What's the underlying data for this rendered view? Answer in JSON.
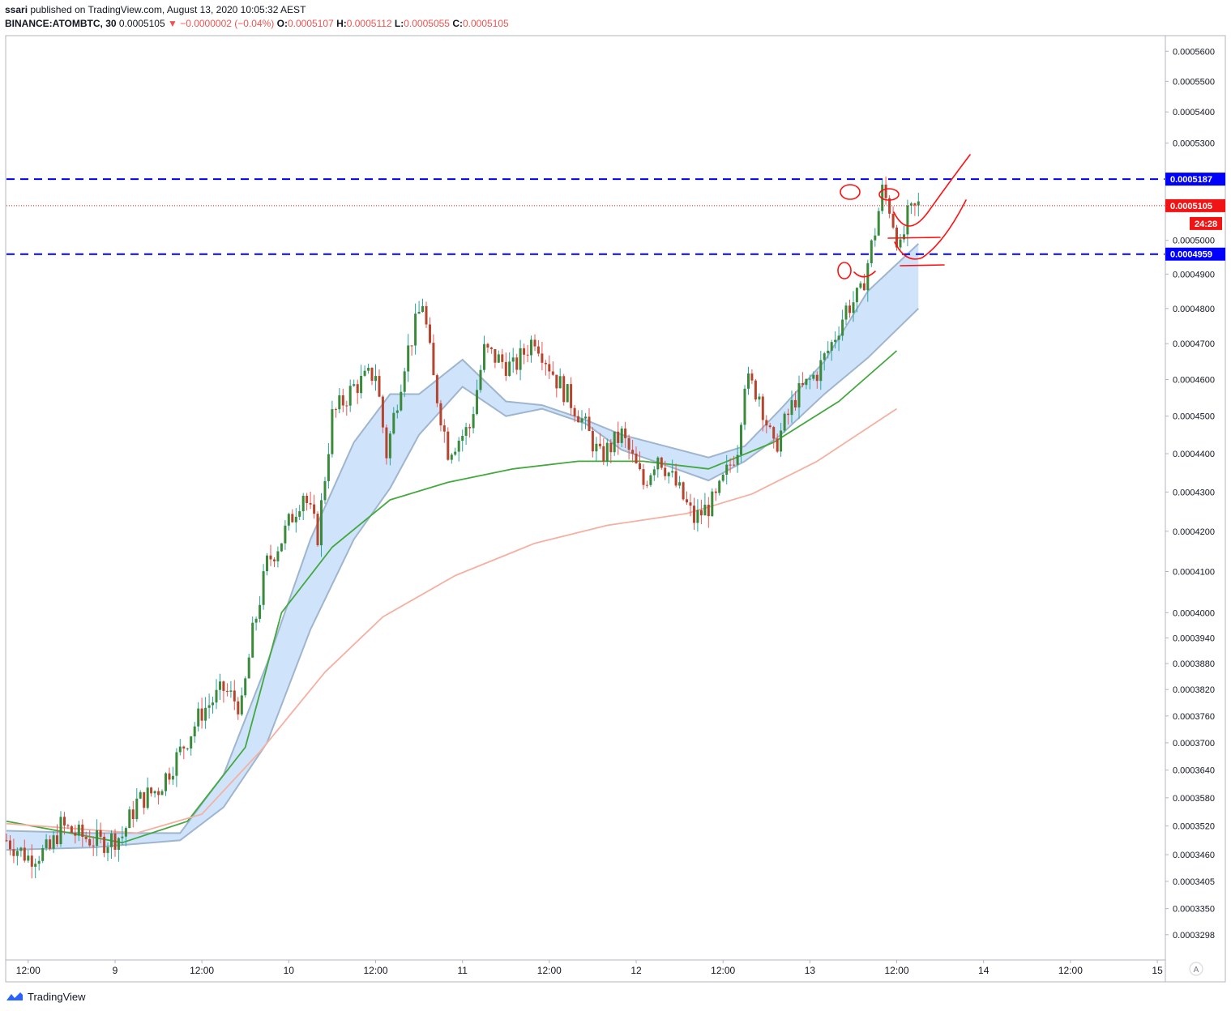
{
  "header": {
    "user": "ssari",
    "published_text": "published on TradingView.com, August 13, 2020 10:05:32 AEST",
    "symbol": "BINANCE:ATOMBTC, 30",
    "last": "0.0005105",
    "change": "▼ −0.0000002 (−0.04%)",
    "o_label": "O:",
    "o_value": "0.0005107",
    "h_label": "H:",
    "h_value": "0.0005112",
    "l_label": "L:",
    "l_value": "0.0005055",
    "c_label": "C:",
    "c_value": "0.0005105"
  },
  "footer": {
    "brand": "TradingView",
    "logo_icon": "tradingview-logo-icon"
  },
  "price_scale": {
    "ticks": [
      "0.0005600",
      "0.0005500",
      "0.0005400",
      "0.0005300",
      "0.0005000",
      "0.0004900",
      "0.0004800",
      "0.0004700",
      "0.0004600",
      "0.0004500",
      "0.0004400",
      "0.0004300",
      "0.0004200",
      "0.0004100",
      "0.0004000",
      "0.0003940",
      "0.0003880",
      "0.0003820",
      "0.0003760",
      "0.0003700",
      "0.0003640",
      "0.0003580",
      "0.0003520",
      "0.0003460",
      "0.0003405",
      "0.0003350",
      "0.0003298"
    ],
    "badges": [
      {
        "label": "0.0005187",
        "color": "#0000ff",
        "kind": "resistance"
      },
      {
        "label": "0.0005105",
        "color": "#f01414",
        "kind": "last-price"
      },
      {
        "label": "24:28",
        "color": "#f01414",
        "kind": "countdown"
      },
      {
        "label": "0.0004959",
        "color": "#0000ff",
        "kind": "support"
      }
    ],
    "log_scale": true,
    "auto_label": "A"
  },
  "time_scale": {
    "labels": [
      "12:00",
      "9",
      "12:00",
      "10",
      "12:00",
      "11",
      "12:00",
      "12",
      "12:00",
      "13",
      "12:00",
      "14",
      "12:00",
      "15"
    ],
    "start": "2020-08-08 09:00",
    "end": "2020-08-15 01:00"
  },
  "chart_data": {
    "type": "candlestick",
    "symbol": "BINANCE:ATOMBTC",
    "interval": "30",
    "xlim": [
      "2020-08-08 09:00",
      "2020-08-15 01:00"
    ],
    "ylim": [
      0.000325,
      0.000565
    ],
    "y_scale": "log",
    "grid": false,
    "levels": [
      {
        "value": 0.0005187,
        "style": "dashed",
        "color": "#0000ff"
      },
      {
        "value": 0.0004959,
        "style": "dashed",
        "color": "#0000ff"
      },
      {
        "value": 0.0005105,
        "style": "dotted",
        "color": "#f01414"
      }
    ],
    "close_path": [
      [
        "2020-08-08 09:00",
        0.000349
      ],
      [
        "2020-08-08 12:00",
        0.0003455
      ],
      [
        "2020-08-08 15:00",
        0.000347
      ],
      [
        "2020-08-08 16:30",
        0.000352
      ],
      [
        "2020-08-08 19:00",
        0.00035
      ],
      [
        "2020-08-08 22:00",
        0.0003485
      ],
      [
        "2020-08-09 01:00",
        0.00035
      ],
      [
        "2020-08-09 03:00",
        0.000357
      ],
      [
        "2020-08-09 06:00",
        0.00036
      ],
      [
        "2020-08-09 09:00",
        0.000368
      ],
      [
        "2020-08-09 12:00",
        0.000377
      ],
      [
        "2020-08-09 15:00",
        0.000382
      ],
      [
        "2020-08-09 17:30",
        0.000378
      ],
      [
        "2020-08-09 19:00",
        0.000395
      ],
      [
        "2020-08-09 21:00",
        0.000412
      ],
      [
        "2020-08-09 23:00",
        0.000418
      ],
      [
        "2020-08-10 02:00",
        0.00043
      ],
      [
        "2020-08-10 04:00",
        0.000419
      ],
      [
        "2020-08-10 06:00",
        0.00045
      ],
      [
        "2020-08-10 09:00",
        0.000458
      ],
      [
        "2020-08-10 12:00",
        0.000462
      ],
      [
        "2020-08-10 13:30",
        0.00044
      ],
      [
        "2020-08-10 16:00",
        0.000465
      ],
      [
        "2020-08-10 18:30",
        0.000482
      ],
      [
        "2020-08-10 20:00",
        0.00046
      ],
      [
        "2020-08-10 22:00",
        0.000441
      ],
      [
        "2020-08-11 01:00",
        0.000447
      ],
      [
        "2020-08-11 03:00",
        0.000468
      ],
      [
        "2020-08-11 07:00",
        0.000463
      ],
      [
        "2020-08-11 10:00",
        0.000472
      ],
      [
        "2020-08-11 13:00",
        0.00046
      ],
      [
        "2020-08-11 16:00",
        0.000451
      ],
      [
        "2020-08-11 19:00",
        0.000439
      ],
      [
        "2020-08-11 22:00",
        0.000445
      ],
      [
        "2020-08-12 01:00",
        0.000432
      ],
      [
        "2020-08-12 03:00",
        0.00044
      ],
      [
        "2020-08-12 06:00",
        0.00043
      ],
      [
        "2020-08-12 08:00",
        0.000423
      ],
      [
        "2020-08-12 11:00",
        0.000428
      ],
      [
        "2020-08-12 14:00",
        0.000442
      ],
      [
        "2020-08-12 15:00",
        0.00046
      ],
      [
        "2020-08-12 17:00",
        0.000456
      ],
      [
        "2020-08-12 19:00",
        0.000441
      ],
      [
        "2020-08-12 22:00",
        0.000455
      ],
      [
        "2020-08-13 01:00",
        0.000462
      ],
      [
        "2020-08-13 03:00",
        0.00047
      ],
      [
        "2020-08-13 05:00",
        0.00048
      ],
      [
        "2020-08-13 07:00",
        0.000484
      ],
      [
        "2020-08-13 09:00",
        0.000503
      ],
      [
        "2020-08-13 10:00",
        0.000515
      ],
      [
        "2020-08-13 11:00",
        0.00051
      ],
      [
        "2020-08-13 12:30",
        0.000497
      ],
      [
        "2020-08-13 13:30",
        0.000507
      ],
      [
        "2020-08-13 15:00",
        0.0005105
      ]
    ],
    "series": [
      {
        "name": "EMA",
        "color": "#43a83e",
        "values": [
          [
            "2020-08-08 09:00",
            0.000353
          ],
          [
            "2020-08-09 01:00",
            0.0003485
          ],
          [
            "2020-08-09 10:00",
            0.000353
          ],
          [
            "2020-08-09 18:00",
            0.000369
          ],
          [
            "2020-08-09 23:00",
            0.0004
          ],
          [
            "2020-08-10 06:00",
            0.000416
          ],
          [
            "2020-08-10 14:00",
            0.000428
          ],
          [
            "2020-08-10 22:00",
            0.0004325
          ],
          [
            "2020-08-11 07:00",
            0.000436
          ],
          [
            "2020-08-11 16:00",
            0.000438
          ],
          [
            "2020-08-12 01:00",
            0.000438
          ],
          [
            "2020-08-12 10:00",
            0.000436
          ],
          [
            "2020-08-12 19:00",
            0.000443
          ],
          [
            "2020-08-13 04:00",
            0.000454
          ],
          [
            "2020-08-13 12:00",
            0.000468
          ]
        ]
      },
      {
        "name": "EMA",
        "color": "#f5b0a2",
        "values": [
          [
            "2020-08-08 09:00",
            0.0003525
          ],
          [
            "2020-08-09 03:00",
            0.0003505
          ],
          [
            "2020-08-09 12:00",
            0.0003545
          ],
          [
            "2020-08-09 20:00",
            0.000368
          ],
          [
            "2020-08-10 05:00",
            0.000386
          ],
          [
            "2020-08-10 13:00",
            0.000399
          ],
          [
            "2020-08-10 23:00",
            0.000409
          ],
          [
            "2020-08-11 10:00",
            0.000417
          ],
          [
            "2020-08-11 20:00",
            0.0004215
          ],
          [
            "2020-08-12 07:00",
            0.0004245
          ],
          [
            "2020-08-12 16:00",
            0.0004295
          ],
          [
            "2020-08-13 01:00",
            0.000438
          ],
          [
            "2020-08-13 12:00",
            0.000452
          ]
        ]
      },
      {
        "name": "Band",
        "color": "#9fb5ce",
        "fill": "#cfe4fa",
        "values": [
          [
            "2020-08-08 09:00",
            0.000351,
            0.000347
          ],
          [
            "2020-08-08 21:00",
            0.0003505,
            0.0003475
          ],
          [
            "2020-08-09 09:00",
            0.0003505,
            0.000349
          ],
          [
            "2020-08-09 15:00",
            0.000363,
            0.000356
          ],
          [
            "2020-08-09 21:00",
            0.000388,
            0.00037
          ],
          [
            "2020-08-10 03:00",
            0.000418,
            0.000396
          ],
          [
            "2020-08-10 09:00",
            0.000443,
            0.000418
          ],
          [
            "2020-08-10 14:00",
            0.000456,
            0.000431
          ],
          [
            "2020-08-10 18:00",
            0.000456,
            0.000445
          ],
          [
            "2020-08-11 00:00",
            0.0004655,
            0.000458
          ],
          [
            "2020-08-11 06:00",
            0.000454,
            0.00045
          ],
          [
            "2020-08-11 11:00",
            0.000453,
            0.000452
          ],
          [
            "2020-08-11 17:00",
            0.000449,
            0.000448
          ],
          [
            "2020-08-11 22:00",
            0.000445,
            0.000441
          ],
          [
            "2020-08-12 04:00",
            0.000442,
            0.000437
          ],
          [
            "2020-08-12 10:00",
            0.000439,
            0.000433
          ],
          [
            "2020-08-12 15:00",
            0.000442,
            0.000438
          ],
          [
            "2020-08-12 20:00",
            0.000452,
            0.000445
          ],
          [
            "2020-08-13 02:00",
            0.000465,
            0.000456
          ],
          [
            "2020-08-13 08:00",
            0.000485,
            0.000466
          ],
          [
            "2020-08-13 15:00",
            0.000499,
            0.00048
          ]
        ]
      }
    ]
  }
}
